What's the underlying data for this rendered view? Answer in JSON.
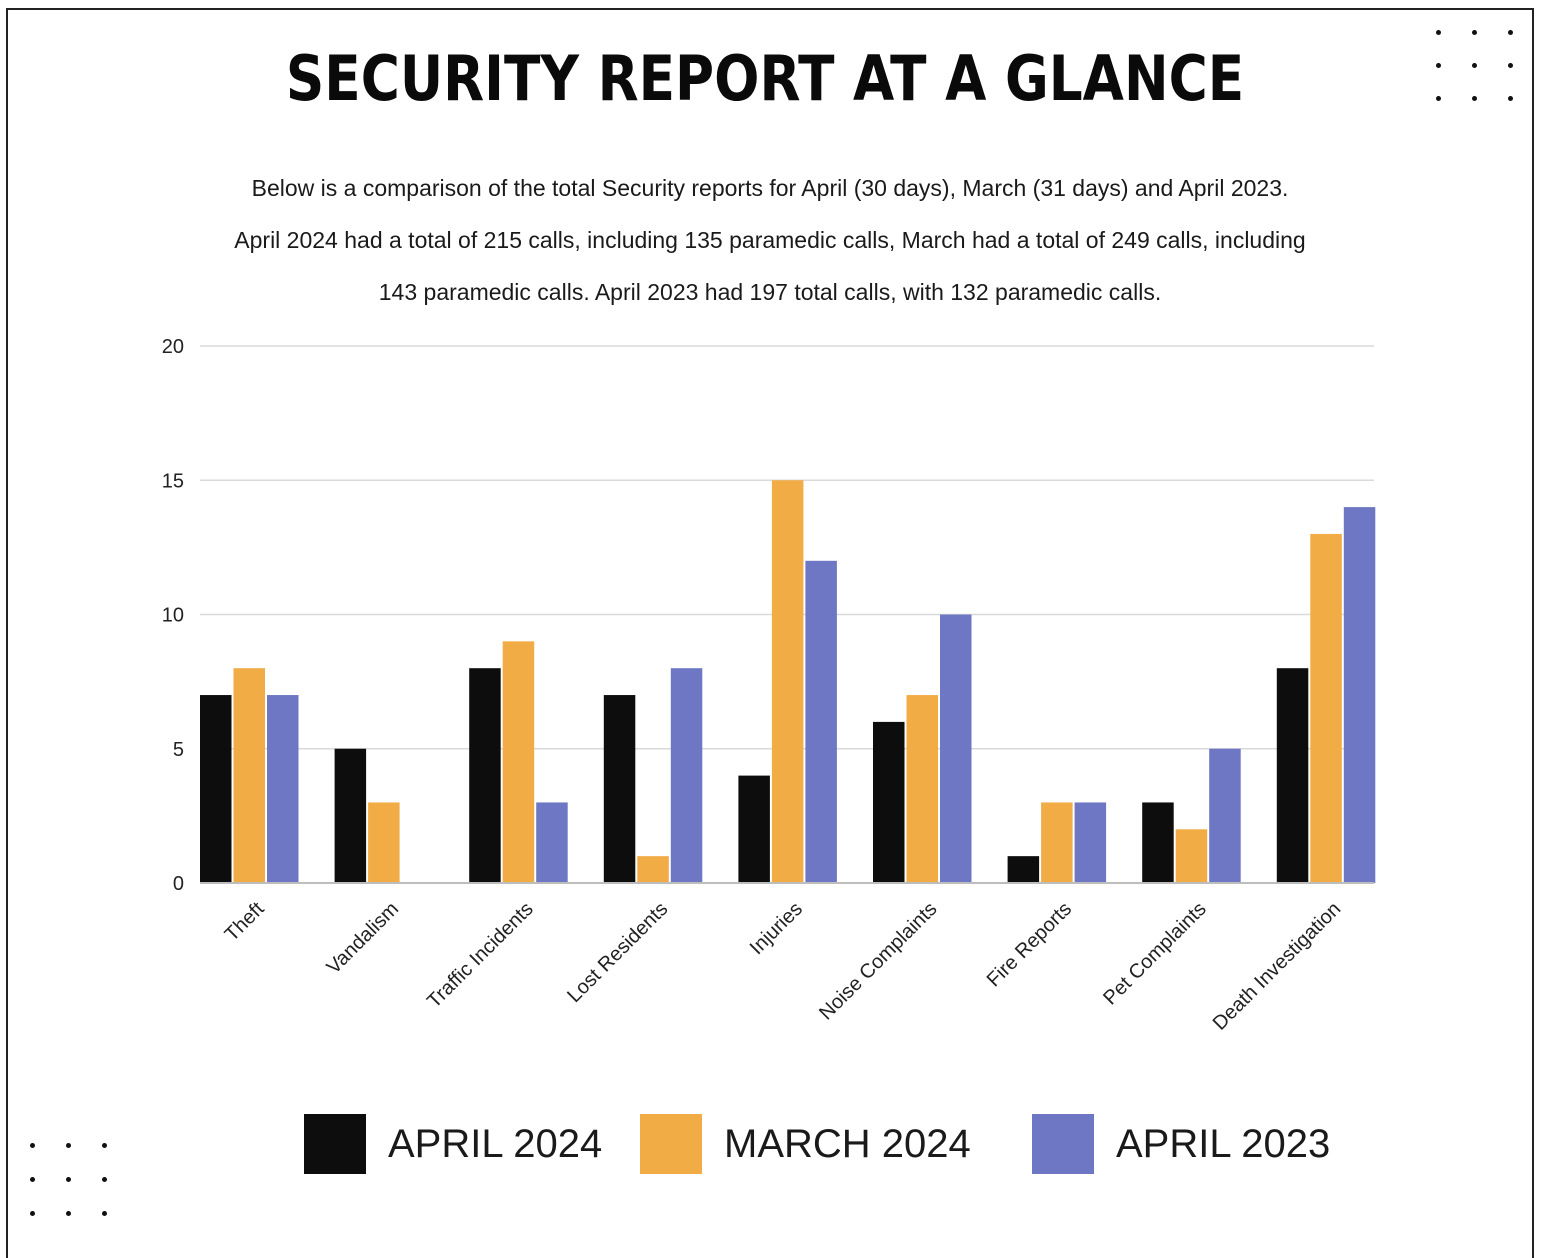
{
  "header": {
    "title": "SECURITY REPORT AT A GLANCE",
    "intro_lines": [
      "Below is a comparison of the total Security reports for April (30 days),  March (31 days) and April 2023.",
      "April 2024 had a total of 215 calls, including 135 paramedic calls, March had a total of 249 calls, including",
      "143 paramedic calls. April 2023 had 197 total calls, with 132 paramedic calls."
    ]
  },
  "legend": {
    "items": [
      {
        "label": "APRIL 2024",
        "color": "#0d0d0d"
      },
      {
        "label": "MARCH 2024",
        "color": "#f1ac45"
      },
      {
        "label": "APRIL 2023",
        "color": "#6e77c3"
      }
    ]
  },
  "chart_data": {
    "type": "bar",
    "categories": [
      "Theft",
      "Vandalism",
      "Traffic Incidents",
      "Lost Residents",
      "Injuries",
      "Noise Complaints",
      "Fire Reports",
      "Pet Complaints",
      "Death Investigation"
    ],
    "series": [
      {
        "name": "APRIL 2024",
        "color": "#0d0d0d",
        "values": [
          7,
          5,
          8,
          7,
          4,
          6,
          1,
          3,
          8
        ]
      },
      {
        "name": "MARCH 2024",
        "color": "#f1ac45",
        "values": [
          8,
          3,
          9,
          1,
          15,
          7,
          3,
          2,
          13
        ]
      },
      {
        "name": "APRIL 2023",
        "color": "#6e77c3",
        "values": [
          7,
          0,
          3,
          8,
          12,
          10,
          3,
          5,
          14
        ]
      }
    ],
    "ylim": [
      0,
      20
    ],
    "yticks": [
      0,
      5,
      10,
      15,
      20
    ],
    "grid": true,
    "legend_position": "bottom",
    "xlabel": "",
    "ylabel": ""
  }
}
